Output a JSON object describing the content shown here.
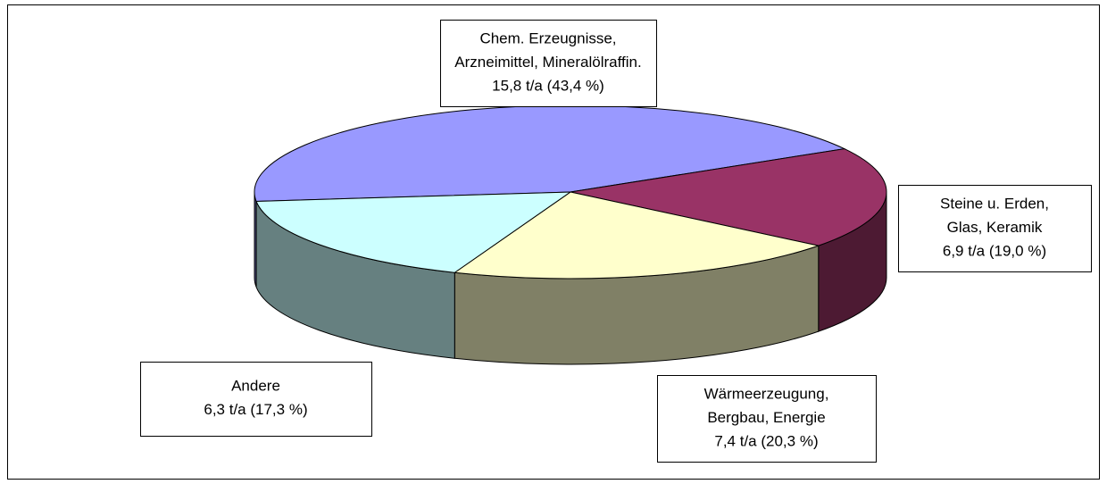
{
  "chart_data": {
    "type": "pie3d",
    "categories": [
      [
        "Chem. Erzeugnisse,",
        "Arzneimittel, Mineralölraffin."
      ],
      [
        "Steine u. Erden,",
        "Glas, Keramik"
      ],
      [
        "Wärmeerzeugung,",
        "Bergbau, Energie"
      ],
      [
        "Andere"
      ]
    ],
    "values": [
      15.8,
      6.9,
      7.4,
      6.3
    ],
    "value_labels": [
      "15,8 t/a (43,4 %)",
      "6,9 t/a (19,0 %)",
      "7,4 t/a (20,3 %)",
      "6,3 t/a (17,3 %)"
    ],
    "colors": [
      "#9999ff",
      "#993366",
      "#ffffcc",
      "#ccffff"
    ]
  }
}
